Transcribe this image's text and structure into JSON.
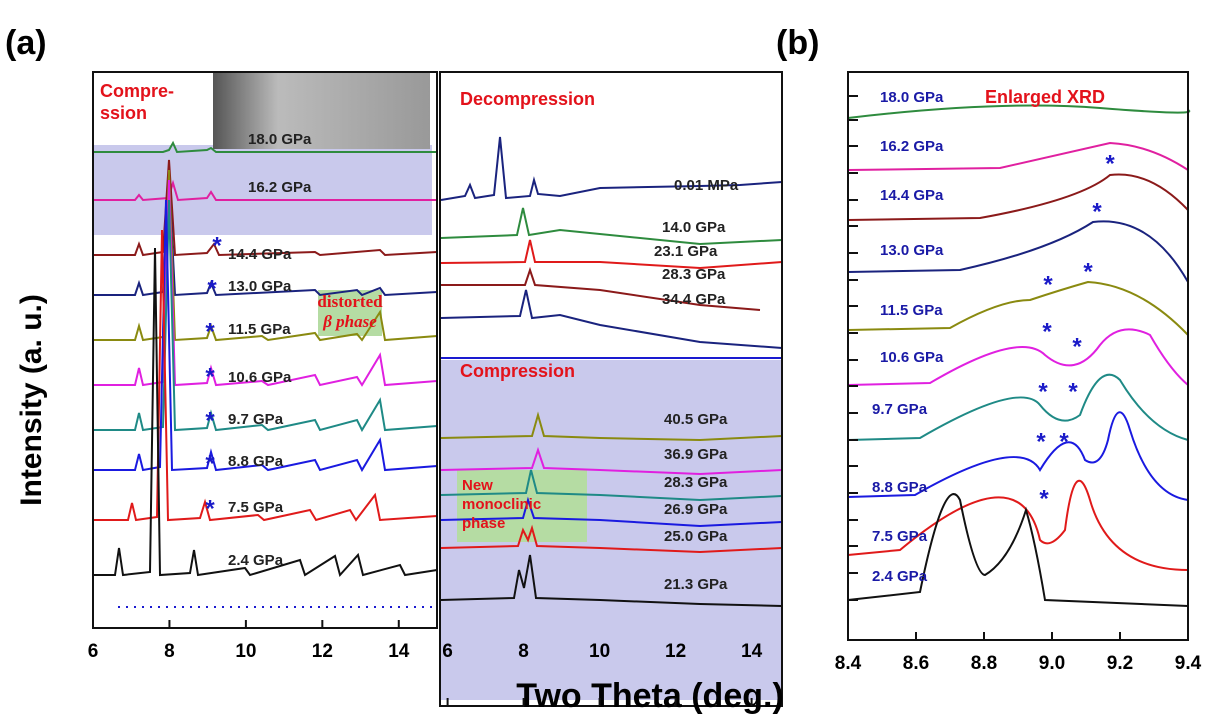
{
  "panel_labels": [
    "(a)",
    "(b)"
  ],
  "y_label": "Intensity (a. u.)",
  "x_label": "Two Theta (deg.)",
  "asterisk": "*",
  "panel_a_left": {
    "heading": [
      "Compre-",
      "ssion"
    ],
    "inset": [
      "distorted",
      "β phase"
    ],
    "pressures": [
      "18.0 GPa",
      "16.2 GPa",
      "14.4 GPa",
      "13.0 GPa",
      "11.5 GPa",
      "10.6 GPa",
      "9.7 GPa",
      "8.8 GPa",
      "7.5 GPa",
      "2.4 GPa"
    ],
    "xlim": [
      6,
      15
    ],
    "xticks": [
      6,
      8,
      10,
      12,
      14
    ]
  },
  "panel_a_right": {
    "heading_top": "Decompression",
    "pressures_top": [
      "0.01 MPa",
      "14.0 GPa",
      "23.1 GPa",
      "28.3 GPa",
      "34.4 GPa"
    ],
    "heading_bottom": "Compression",
    "pressures_bottom": [
      "40.5 GPa",
      "36.9 GPa",
      "28.3 GPa",
      "26.9 GPa",
      "25.0 GPa",
      "21.3 GPa"
    ],
    "inset": [
      "New",
      "monoclinic",
      "phase"
    ],
    "xlim": [
      5.8,
      14.8
    ],
    "xticks": [
      6,
      8,
      10,
      12,
      14
    ]
  },
  "panel_b": {
    "title": "Enlarged XRD",
    "pressures": [
      "18.0 GPa",
      "16.2 GPa",
      "14.4 GPa",
      "13.0 GPa",
      "11.5 GPa",
      "10.6 GPa",
      "9.7 GPa",
      "8.8 GPa",
      "7.5 GPa",
      "2.4 GPa"
    ],
    "xlim": [
      8.4,
      9.4
    ],
    "xticks": [
      8.4,
      8.6,
      8.8,
      {
        "value": 9,
        "label": "9.0"
      },
      9.2,
      9.4
    ]
  }
}
